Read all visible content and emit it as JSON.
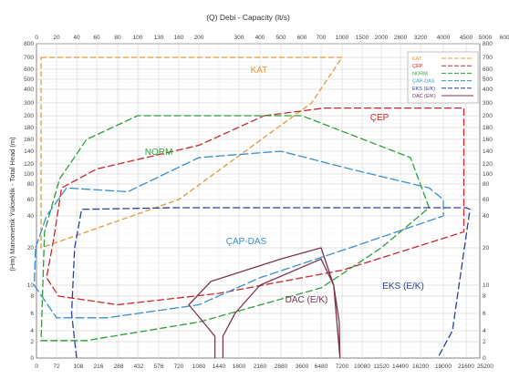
{
  "chart_data": {
    "type": "line",
    "title": "(Q) Debi - Capacity (lt/s)",
    "ylabel": "(Hm) Manometrik Yükseklik - Total Head (m)",
    "top_axis_ticks": [
      "0",
      "20",
      "40",
      "60",
      "80",
      "100",
      "130",
      "160",
      "200",
      "300",
      "400",
      "500",
      "600",
      "700",
      "1000",
      "1500",
      "2000",
      "2800",
      "3200",
      "4000",
      "4500",
      "5000",
      "6000",
      "7000"
    ],
    "bottom_axis_ticks": [
      "0",
      "72",
      "108",
      "216",
      "288",
      "432",
      "576",
      "720",
      "1080",
      "1440",
      "1800",
      "2160",
      "2880",
      "3600",
      "6480",
      "7200",
      "10080",
      "11520",
      "14400",
      "16200",
      "18000",
      "21600",
      "25200"
    ],
    "y_axis_ticks": [
      "800",
      "700",
      "600",
      "500",
      "400",
      "300",
      "200",
      "180",
      "160",
      "140",
      "120",
      "100",
      "80",
      "60",
      "40",
      "20",
      "10",
      "8",
      "6",
      "4",
      "2",
      "0"
    ],
    "legend": [
      "KAT",
      "ÇEP",
      "NORM",
      "ÇAP-DAS",
      "EKS (E/K)",
      "DAC (E/K)"
    ],
    "series": [
      {
        "name": "KAT",
        "label": "KAT",
        "color": "#e09a38",
        "dash": "6,3",
        "points": [
          [
            4.5,
            700
          ],
          [
            135,
            700
          ],
          [
            500,
            700
          ],
          [
            1000,
            700
          ],
          [
            650,
            300
          ],
          [
            160,
            60
          ],
          [
            50,
            30
          ],
          [
            4.5,
            20
          ],
          [
            4.5,
            700
          ]
        ]
      },
      {
        "name": "ÇEP",
        "label": "ÇEP",
        "color": "#c8282a",
        "dash": "8,3",
        "points": [
          [
            420,
            200
          ],
          [
            750,
            260
          ],
          [
            4450,
            260
          ],
          [
            4450,
            30
          ],
          [
            1000,
            14
          ],
          [
            250,
            8.5
          ],
          [
            80,
            7
          ],
          [
            22,
            8
          ],
          [
            10,
            12
          ],
          [
            17,
            25
          ],
          [
            25,
            75
          ],
          [
            60,
            110
          ],
          [
            200,
            150
          ],
          [
            420,
            200
          ]
        ]
      },
      {
        "name": "NORM",
        "label": "NORM",
        "color": "#2f9e3c",
        "dash": "8,3",
        "points": [
          [
            23,
            90
          ],
          [
            50,
            160
          ],
          [
            100,
            200
          ],
          [
            200,
            200
          ],
          [
            600,
            200
          ],
          [
            3000,
            130
          ],
          [
            3500,
            50
          ],
          [
            2000,
            20
          ],
          [
            700,
            9.5
          ],
          [
            200,
            5
          ],
          [
            50,
            2.2
          ],
          [
            4.5,
            2.2
          ],
          [
            8,
            30
          ],
          [
            23,
            90
          ]
        ]
      },
      {
        "name": "ÇAP-DAS",
        "label": "ÇAP-DAS",
        "color": "#3a8fcc",
        "dash": "10,3",
        "points": [
          [
            -2,
            20
          ],
          [
            10,
            40
          ],
          [
            30,
            75
          ],
          [
            90,
            70
          ],
          [
            200,
            130
          ],
          [
            500,
            140
          ],
          [
            1200,
            110
          ],
          [
            3500,
            75
          ],
          [
            4000,
            60
          ],
          [
            4000,
            40
          ],
          [
            1200,
            20
          ],
          [
            400,
            12
          ],
          [
            200,
            7
          ],
          [
            70,
            5.5
          ],
          [
            20,
            5.5
          ],
          [
            -5,
            10
          ],
          [
            -2,
            20
          ]
        ]
      },
      {
        "name": "EKS (E/K)",
        "label": "EKS (E/K)",
        "color": "#2c3f9a",
        "dash": "8,3",
        "points": [
          [
            40,
            0
          ],
          [
            35,
            6
          ],
          [
            38,
            20
          ],
          [
            45,
            48
          ],
          [
            150,
            50
          ],
          [
            1000,
            50
          ],
          [
            4500,
            50
          ],
          [
            4600,
            48
          ],
          [
            4200,
            4
          ],
          [
            3800,
            0
          ]
        ]
      },
      {
        "name": "DAC (E/K)",
        "label": "DAC (E/K)",
        "color": "#7a3550",
        "dash": "",
        "points": [
          [
            240,
            0
          ],
          [
            240,
            3
          ],
          [
            180,
            7
          ],
          [
            230,
            11
          ],
          [
            500,
            17
          ],
          [
            700,
            20
          ],
          [
            880,
            10
          ],
          [
            960,
            5
          ],
          [
            970,
            0
          ],
          [
            880,
            10
          ],
          [
            700,
            17
          ],
          [
            400,
            10
          ],
          [
            290,
            6
          ],
          [
            260,
            3
          ],
          [
            260,
            0
          ]
        ]
      }
    ]
  }
}
